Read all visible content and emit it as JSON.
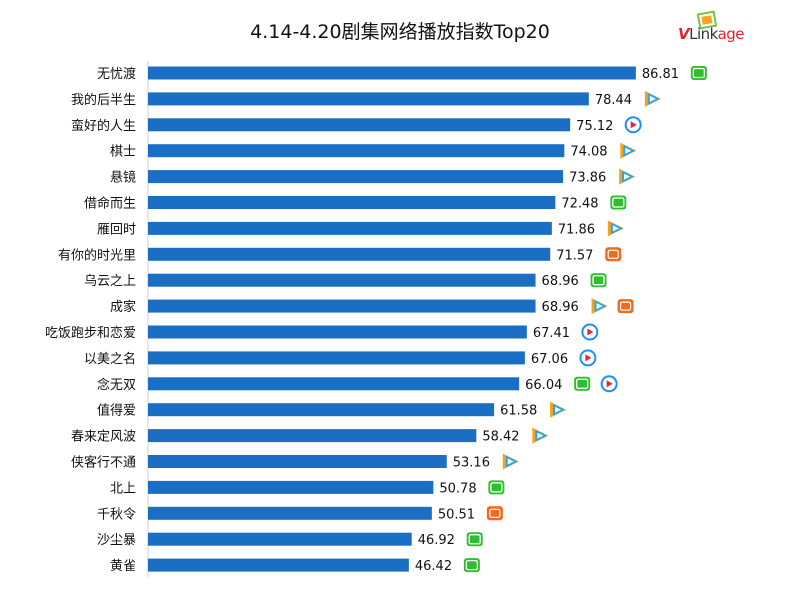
{
  "title": "4.14-4.20剧集网络播放指数Top20",
  "logo": {
    "v": "V",
    "link": "Link",
    "age": "age"
  },
  "colors": {
    "bar": "#1a6fc4",
    "iqiyi": "#2fbe2f",
    "tencent": "#1e9be8",
    "youku": "#1890ff",
    "mango": "#f26a1b"
  },
  "chart_data": {
    "type": "bar",
    "orientation": "horizontal",
    "categories": [
      "无忧渡",
      "我的后半生",
      "蛮好的人生",
      "棋士",
      "悬镜",
      "借命而生",
      "雁回时",
      "有你的时光里",
      "乌云之上",
      "成家",
      "吃饭跑步和恋爱",
      "以美之名",
      "念无双",
      "值得爱",
      "春来定风波",
      "侠客行不通",
      "北上",
      "千秋令",
      "沙尘暴",
      "黄雀"
    ],
    "values": [
      86.81,
      78.44,
      75.12,
      74.08,
      73.86,
      72.48,
      71.86,
      71.57,
      68.96,
      68.96,
      67.41,
      67.06,
      66.04,
      61.58,
      58.42,
      53.16,
      50.78,
      50.51,
      46.92,
      46.42
    ],
    "value_labels": [
      "86.81",
      "78.44",
      "75.12",
      "74.08",
      "73.86",
      "72.48",
      "71.86",
      "71.57",
      "68.96",
      "68.96",
      "67.41",
      "67.06",
      "66.04",
      "61.58",
      "58.42",
      "53.16",
      "50.78",
      "50.51",
      "46.92",
      "46.42"
    ],
    "platforms": [
      [
        "iqiyi"
      ],
      [
        "tencent"
      ],
      [
        "youku"
      ],
      [
        "tencent"
      ],
      [
        "tencent"
      ],
      [
        "iqiyi"
      ],
      [
        "tencent"
      ],
      [
        "mango"
      ],
      [
        "iqiyi"
      ],
      [
        "tencent",
        "mango"
      ],
      [
        "youku"
      ],
      [
        "youku"
      ],
      [
        "iqiyi",
        "youku"
      ],
      [
        "tencent"
      ],
      [
        "tencent"
      ],
      [
        "tencent"
      ],
      [
        "iqiyi"
      ],
      [
        "mango"
      ],
      [
        "iqiyi"
      ],
      [
        "iqiyi"
      ]
    ],
    "xlim": [
      0,
      100
    ],
    "grid": false,
    "legend": "none"
  }
}
